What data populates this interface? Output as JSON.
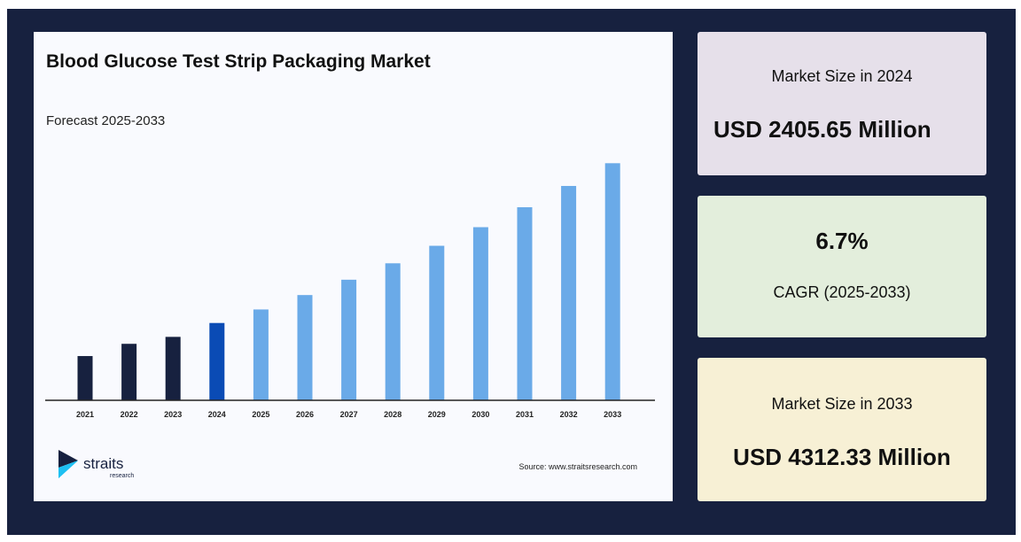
{
  "chart_data": {
    "type": "bar",
    "title": "Blood Glucose Test Strip Packaging Market",
    "subtitle": "Forecast 2025-2033",
    "categories": [
      "2021",
      "2022",
      "2023",
      "2024",
      "2025",
      "2026",
      "2027",
      "2028",
      "2029",
      "2030",
      "2031",
      "2032",
      "2033"
    ],
    "values": [
      2011,
      2157,
      2240,
      2405.65,
      2567,
      2739,
      2922,
      3118,
      3327,
      3549,
      3787,
      4041,
      4312.33
    ],
    "unit": "USD Million",
    "ylim": [
      1483,
      4400
    ],
    "grid": false,
    "colors": {
      "historical": "#17213f",
      "base_year": "#0a4bb5",
      "forecast": "#6aaae8"
    },
    "source": "Source: www.straitsresearch.com"
  },
  "logo": {
    "name": "straits",
    "tagline": "research"
  },
  "cards": [
    {
      "label": "Market Size in 2024",
      "value": "USD 2405.65 Million",
      "bg": "#e6e0ea"
    },
    {
      "value": "6.7%",
      "label": "CAGR (2025-2033)",
      "bg": "#e3eedc"
    },
    {
      "label": "Market Size in 2033",
      "value": "USD 4312.33 Million",
      "bg": "#f7f0d5"
    }
  ]
}
